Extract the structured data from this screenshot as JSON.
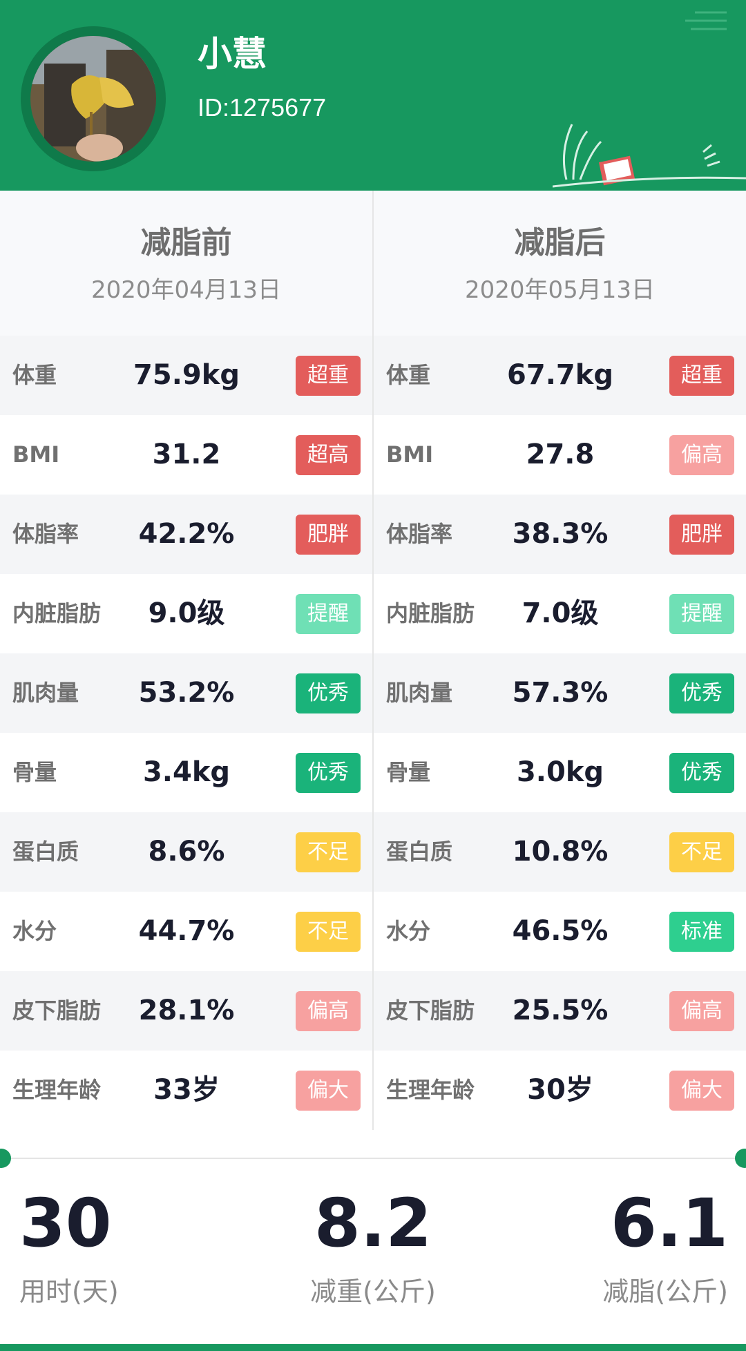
{
  "colors": {
    "brand_green": "#17985f",
    "badge_red": "#e35d5b",
    "badge_pink": "#f7a1a0",
    "badge_green": "#1ab37a",
    "badge_mint": "#6fe0b5",
    "badge_yellow": "#fdcf47"
  },
  "profile": {
    "name": "小慧",
    "id": "ID:1275677",
    "avatar_icon": "avatar-photo"
  },
  "before": {
    "title": "减脂前",
    "date": "2020年04月13日",
    "rows": [
      {
        "label": "体重",
        "value": "75.9kg",
        "badge": "超重",
        "badge_color": "#e35d5b"
      },
      {
        "label": "BMI",
        "value": "31.2",
        "badge": "超高",
        "badge_color": "#e35d5b"
      },
      {
        "label": "体脂率",
        "value": "42.2%",
        "badge": "肥胖",
        "badge_color": "#e35d5b"
      },
      {
        "label": "内脏脂肪",
        "value": "9.0级",
        "badge": "提醒",
        "badge_color": "#6fe0b5"
      },
      {
        "label": "肌肉量",
        "value": "53.2%",
        "badge": "优秀",
        "badge_color": "#1ab37a"
      },
      {
        "label": "骨量",
        "value": "3.4kg",
        "badge": "优秀",
        "badge_color": "#1ab37a"
      },
      {
        "label": "蛋白质",
        "value": "8.6%",
        "badge": "不足",
        "badge_color": "#fdcf47"
      },
      {
        "label": "水分",
        "value": "44.7%",
        "badge": "不足",
        "badge_color": "#fdcf47"
      },
      {
        "label": "皮下脂肪",
        "value": "28.1%",
        "badge": "偏高",
        "badge_color": "#f7a1a0"
      },
      {
        "label": "生理年龄",
        "value": "33岁",
        "badge": "偏大",
        "badge_color": "#f7a1a0"
      }
    ]
  },
  "after": {
    "title": "减脂后",
    "date": "2020年05月13日",
    "rows": [
      {
        "label": "体重",
        "value": "67.7kg",
        "badge": "超重",
        "badge_color": "#e35d5b"
      },
      {
        "label": "BMI",
        "value": "27.8",
        "badge": "偏高",
        "badge_color": "#f7a1a0"
      },
      {
        "label": "体脂率",
        "value": "38.3%",
        "badge": "肥胖",
        "badge_color": "#e35d5b"
      },
      {
        "label": "内脏脂肪",
        "value": "7.0级",
        "badge": "提醒",
        "badge_color": "#6fe0b5"
      },
      {
        "label": "肌肉量",
        "value": "57.3%",
        "badge": "优秀",
        "badge_color": "#1ab37a"
      },
      {
        "label": "骨量",
        "value": "3.0kg",
        "badge": "优秀",
        "badge_color": "#1ab37a"
      },
      {
        "label": "蛋白质",
        "value": "10.8%",
        "badge": "不足",
        "badge_color": "#fdcf47"
      },
      {
        "label": "水分",
        "value": "46.5%",
        "badge": "标准",
        "badge_color": "#2ecf8f"
      },
      {
        "label": "皮下脂肪",
        "value": "25.5%",
        "badge": "偏高",
        "badge_color": "#f7a1a0"
      },
      {
        "label": "生理年龄",
        "value": "30岁",
        "badge": "偏大",
        "badge_color": "#f7a1a0"
      }
    ]
  },
  "summary": [
    {
      "value": "30",
      "label": "用时(天)"
    },
    {
      "value": "8.2",
      "label": "减重(公斤)"
    },
    {
      "value": "6.1",
      "label": "减脂(公斤)"
    }
  ]
}
